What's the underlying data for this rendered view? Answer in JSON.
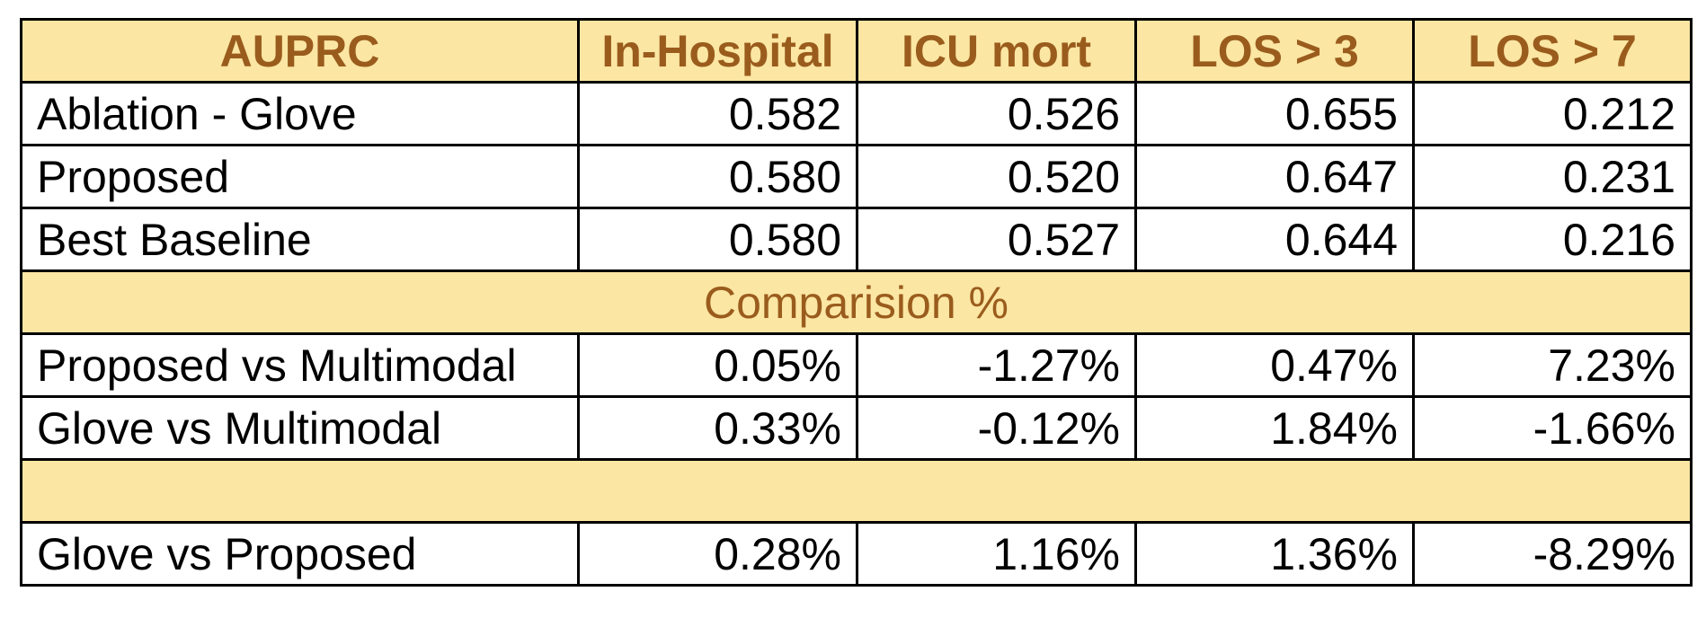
{
  "table": {
    "headers": [
      "AUPRC",
      "In-Hospital",
      "ICU mort",
      "LOS > 3",
      "LOS > 7"
    ],
    "rows": [
      {
        "label": "Ablation - Glove",
        "values": [
          "0.582",
          "0.526",
          "0.655",
          "0.212"
        ]
      },
      {
        "label": "Proposed",
        "values": [
          "0.580",
          "0.520",
          "0.647",
          "0.231"
        ]
      },
      {
        "label": "Best Baseline",
        "values": [
          "0.580",
          "0.527",
          "0.644",
          "0.216"
        ]
      }
    ],
    "comparison_title": "Comparision %",
    "comparison_rows": [
      {
        "label": "Proposed vs Multimodal",
        "values": [
          "0.05%",
          "-1.27%",
          "0.47%",
          "7.23%"
        ]
      },
      {
        "label": "Glove vs Multimodal",
        "values": [
          "0.33%",
          "-0.12%",
          "1.84%",
          "-1.66%"
        ]
      }
    ],
    "final_rows": [
      {
        "label": "Glove vs Proposed",
        "values": [
          "0.28%",
          "1.16%",
          "1.36%",
          "-8.29%"
        ]
      }
    ]
  },
  "colors": {
    "header_fill": "#fbe6a3",
    "header_text": "#9a5c1d",
    "border": "#000000"
  }
}
